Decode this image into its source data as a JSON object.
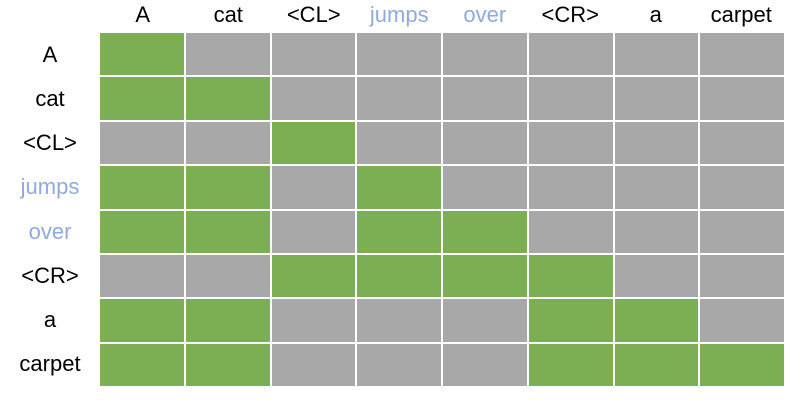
{
  "figure": {
    "background": "#FFFFFF"
  },
  "chart_data": {
    "type": "heatmap",
    "x_labels": [
      "A",
      "cat",
      "<CL>",
      "jumps",
      "over",
      "<CR>",
      "a",
      "carpet"
    ],
    "y_labels": [
      "A",
      "cat",
      "<CL>",
      "jumps",
      "over",
      "<CR>",
      "a",
      "carpet"
    ],
    "highlighted_label_indices": [
      3,
      4
    ],
    "matrix": [
      [
        1,
        0,
        0,
        0,
        0,
        0,
        0,
        0
      ],
      [
        1,
        1,
        0,
        0,
        0,
        0,
        0,
        0
      ],
      [
        0,
        0,
        1,
        0,
        0,
        0,
        0,
        0
      ],
      [
        1,
        1,
        0,
        1,
        0,
        0,
        0,
        0
      ],
      [
        1,
        1,
        0,
        1,
        1,
        0,
        0,
        0
      ],
      [
        0,
        0,
        1,
        1,
        1,
        1,
        0,
        0
      ],
      [
        1,
        1,
        0,
        0,
        0,
        1,
        1,
        0
      ],
      [
        1,
        1,
        0,
        0,
        0,
        1,
        1,
        1
      ]
    ],
    "cell_value_meaning": {
      "1": "attended",
      "0": "masked"
    },
    "colors": {
      "attended": "#7CAE54",
      "masked": "#A8A8A8",
      "highlight_text": "#8FAADC",
      "label_text": "#000000",
      "gridline": "#FFFFFF"
    },
    "legend_position": "none",
    "grid": true
  }
}
